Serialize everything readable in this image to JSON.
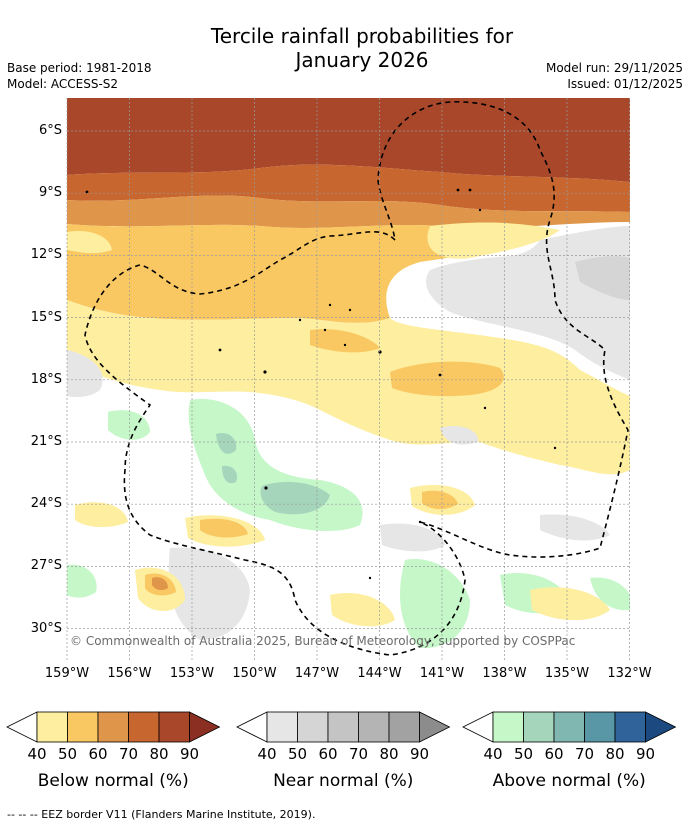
{
  "title_line1": "Tercile rainfall probabilities for",
  "title_line2": "January 2026",
  "base_period": "Base period: 1981-2018",
  "model": "Model: ACCESS-S2",
  "model_run": "Model run: 29/11/2025",
  "issued": "Issued: 01/12/2025",
  "lat_labels": [
    "6°S",
    "9°S",
    "12°S",
    "15°S",
    "18°S",
    "21°S",
    "24°S",
    "27°S",
    "30°S"
  ],
  "lon_labels": [
    "159°W",
    "156°W",
    "153°W",
    "150°W",
    "147°W",
    "144°W",
    "141°W",
    "138°W",
    "135°W",
    "132°W"
  ],
  "copyright": "© Commonwealth of Australia 2025, Bureau of Meteorology, supported by COSPPac",
  "colorbars": [
    {
      "title": "Below normal (%)",
      "ticks": [
        "40",
        "50",
        "60",
        "70",
        "80",
        "90"
      ],
      "colors": [
        "#fdeea0",
        "#fac862",
        "#e0964a",
        "#c8662f",
        "#a8472a",
        "#8a2f22"
      ]
    },
    {
      "title": "Near normal (%)",
      "ticks": [
        "40",
        "50",
        "60",
        "70",
        "80",
        "90"
      ],
      "colors": [
        "#e6e6e6",
        "#d5d5d5",
        "#c4c4c4",
        "#b4b4b4",
        "#a2a2a2",
        "#8c8c8c"
      ]
    },
    {
      "title": "Above normal (%)",
      "ticks": [
        "40",
        "50",
        "60",
        "70",
        "80",
        "90"
      ],
      "colors": [
        "#c6f7c9",
        "#a5d6bb",
        "#80b7b0",
        "#5a97a6",
        "#2f6399",
        "#1c4a80"
      ]
    }
  ],
  "footnote": "--  --  -- EEZ border V11 (Flanders Marine Institute, 2019)."
}
